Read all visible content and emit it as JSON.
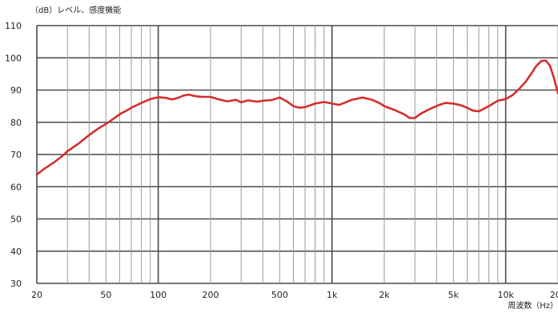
{
  "chart_data": {
    "type": "line",
    "title": "",
    "ylabel": "（dB）レベル、感度機能",
    "xlabel": "周波数（Hz）",
    "x_scale": "log",
    "xlim": [
      20,
      20000
    ],
    "ylim": [
      30,
      110
    ],
    "grid": true,
    "legend": "none",
    "y_ticks": [
      "110",
      "100",
      "90",
      "80",
      "70",
      "60",
      "50",
      "40",
      "30"
    ],
    "x_ticks": [
      {
        "value": 20,
        "label": "20"
      },
      {
        "value": 50,
        "label": "50"
      },
      {
        "value": 100,
        "label": "100"
      },
      {
        "value": 200,
        "label": "200"
      },
      {
        "value": 500,
        "label": "500"
      },
      {
        "value": 1000,
        "label": "1k"
      },
      {
        "value": 2000,
        "label": "2k"
      },
      {
        "value": 5000,
        "label": "5k"
      },
      {
        "value": 10000,
        "label": "10k"
      },
      {
        "value": 20000,
        "label": "20k"
      }
    ],
    "series": [
      {
        "color": "#d42e2e",
        "x": [
          20,
          22,
          25,
          28,
          30,
          35,
          40,
          45,
          50,
          55,
          60,
          65,
          70,
          80,
          90,
          100,
          110,
          120,
          130,
          140,
          150,
          160,
          170,
          180,
          200,
          220,
          250,
          280,
          300,
          330,
          370,
          400,
          450,
          500,
          550,
          600,
          650,
          700,
          800,
          900,
          1000,
          1100,
          1200,
          1300,
          1500,
          1700,
          1900,
          2000,
          2300,
          2600,
          2800,
          3000,
          3200,
          3500,
          3800,
          4200,
          4500,
          5000,
          5500,
          6000,
          6500,
          7000,
          8000,
          9000,
          10000,
          11000,
          12000,
          13000,
          14000,
          15000,
          16000,
          17000,
          18000,
          19000,
          20000
        ],
        "y": [
          63.8,
          65.5,
          67.5,
          69.5,
          71.0,
          73.5,
          76.0,
          78.0,
          79.5,
          81.0,
          82.5,
          83.5,
          84.5,
          86.0,
          87.2,
          87.8,
          87.6,
          87.1,
          87.6,
          88.3,
          88.6,
          88.2,
          88.0,
          87.9,
          87.9,
          87.2,
          86.5,
          87.0,
          86.2,
          86.8,
          86.4,
          86.7,
          86.9,
          87.7,
          86.5,
          85.0,
          84.5,
          84.7,
          85.8,
          86.3,
          85.8,
          85.4,
          86.2,
          87.0,
          87.7,
          87.0,
          85.8,
          85.0,
          83.8,
          82.5,
          81.3,
          81.3,
          82.5,
          83.6,
          84.5,
          85.5,
          86.0,
          85.8,
          85.3,
          84.5,
          83.6,
          83.4,
          85.0,
          86.7,
          87.2,
          88.5,
          90.5,
          92.5,
          95.0,
          97.5,
          99.0,
          99.2,
          97.5,
          93.5,
          89.0
        ]
      }
    ]
  }
}
